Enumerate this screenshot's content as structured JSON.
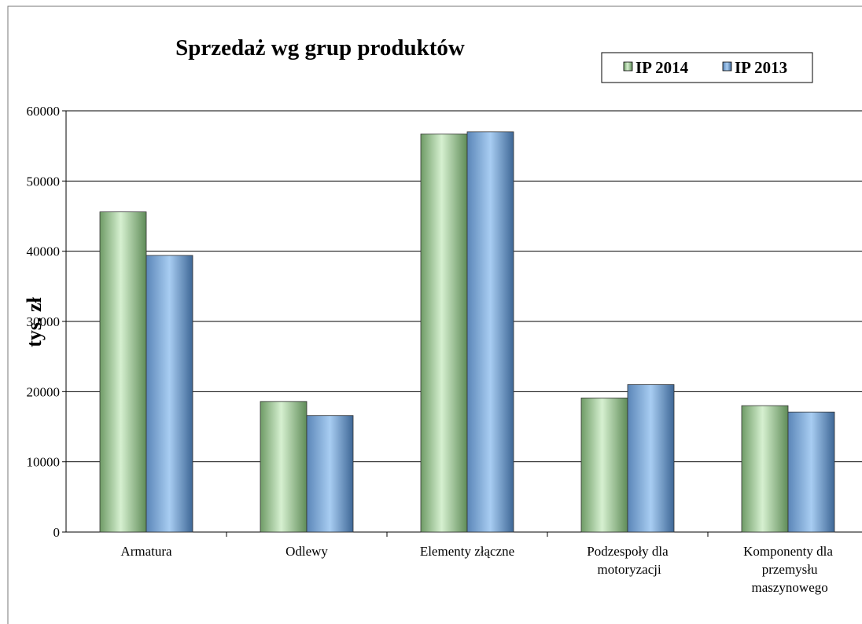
{
  "chart_data": {
    "type": "bar",
    "title": "Sprzedaż wg grup produktów",
    "ylabel": "tys. zł",
    "categories": [
      "Armatura",
      "Odlewy",
      "Elementy złączne",
      "Podzespoły dla motoryzacji",
      "Komponenty dla przemysłu maszynowego"
    ],
    "series": [
      {
        "name": "IP 2014",
        "color": "#a9d8a0",
        "values": [
          45600,
          18600,
          56700,
          19100,
          18000
        ]
      },
      {
        "name": "IP 2013",
        "color": "#8fb8e8",
        "values": [
          39400,
          16600,
          57000,
          21000,
          17100
        ]
      }
    ],
    "ylim": [
      0,
      60000
    ],
    "yticks": [
      0,
      10000,
      20000,
      30000,
      40000,
      50000,
      60000
    ],
    "grid": true,
    "legend": "top-right"
  }
}
